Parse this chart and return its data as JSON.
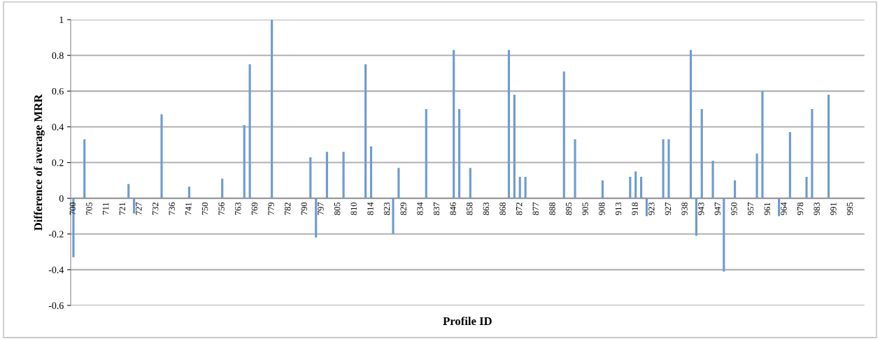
{
  "chart_data": {
    "type": "bar",
    "xlabel": "Profile ID",
    "ylabel": "Difference of average MRR",
    "categories": [
      "700",
      null,
      null,
      "705",
      null,
      null,
      "711",
      null,
      null,
      "721",
      null,
      null,
      "727",
      null,
      null,
      "732",
      null,
      null,
      "736",
      null,
      null,
      "741",
      null,
      null,
      "750",
      null,
      null,
      "756",
      null,
      null,
      "763",
      null,
      null,
      "769",
      null,
      null,
      "779",
      null,
      null,
      "782",
      null,
      null,
      "790",
      null,
      null,
      "797",
      null,
      null,
      "805",
      null,
      null,
      "810",
      null,
      null,
      "814",
      null,
      null,
      "823",
      null,
      null,
      "829",
      null,
      null,
      "834",
      null,
      null,
      "837",
      null,
      null,
      "846",
      null,
      null,
      "858",
      null,
      null,
      "863",
      null,
      null,
      "868",
      null,
      null,
      "872",
      null,
      null,
      "877",
      null,
      null,
      "888",
      null,
      null,
      "895",
      null,
      null,
      "905",
      null,
      null,
      "908",
      null,
      null,
      "913",
      null,
      null,
      "918",
      null,
      null,
      "923",
      null,
      null,
      "927",
      null,
      null,
      "938",
      null,
      null,
      "943",
      null,
      null,
      "947",
      null,
      null,
      "950",
      null,
      null,
      "957",
      null,
      null,
      "961",
      null,
      null,
      "964",
      null,
      null,
      "978",
      null,
      null,
      "983",
      null,
      null,
      "991",
      null,
      null,
      "995",
      null,
      null
    ],
    "values": [
      -0.33,
      null,
      0.33,
      null,
      null,
      null,
      null,
      null,
      null,
      null,
      0.08,
      -0.085,
      null,
      null,
      null,
      null,
      0.47,
      null,
      null,
      null,
      null,
      0.065,
      null,
      null,
      null,
      null,
      null,
      0.11,
      null,
      null,
      null,
      0.41,
      0.75,
      null,
      null,
      null,
      1.0,
      null,
      null,
      null,
      null,
      null,
      null,
      0.23,
      -0.22,
      null,
      0.26,
      null,
      null,
      0.26,
      null,
      null,
      null,
      0.75,
      0.29,
      null,
      null,
      null,
      -0.2,
      0.17,
      null,
      null,
      null,
      null,
      0.5,
      null,
      null,
      null,
      null,
      0.83,
      0.5,
      null,
      0.17,
      null,
      null,
      null,
      null,
      null,
      null,
      0.83,
      0.58,
      0.12,
      0.12,
      null,
      null,
      null,
      null,
      null,
      null,
      0.71,
      null,
      0.33,
      null,
      null,
      null,
      null,
      0.1,
      null,
      null,
      null,
      null,
      0.12,
      0.15,
      0.12,
      -0.1,
      null,
      null,
      0.33,
      0.33,
      null,
      null,
      null,
      0.83,
      -0.21,
      0.5,
      null,
      0.21,
      null,
      -0.41,
      null,
      0.1,
      null,
      null,
      null,
      0.25,
      0.6,
      null,
      null,
      -0.1,
      null,
      0.37,
      null,
      null,
      0.12,
      0.5,
      null,
      null,
      0.58,
      null,
      null,
      null,
      null,
      null,
      null
    ],
    "color": "#6f9bd1",
    "ylim": [
      -0.6,
      1
    ],
    "yticks": [
      -0.6,
      -0.4,
      -0.2,
      0,
      0.2,
      0.4,
      0.6,
      0.8,
      1
    ],
    "grid": "y"
  }
}
